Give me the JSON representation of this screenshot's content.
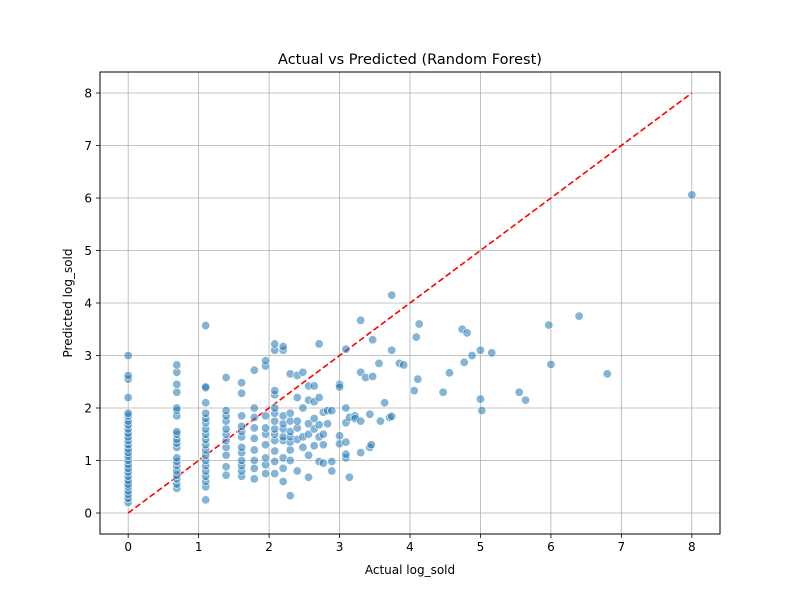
{
  "chart_data": {
    "type": "scatter",
    "title": "Actual vs Predicted (Random Forest)",
    "xlabel": "Actual log_sold",
    "ylabel": "Predicted log_sold",
    "xlim": [
      -0.4,
      8.4
    ],
    "ylim": [
      -0.4,
      8.4
    ],
    "xticks": [
      0,
      1,
      2,
      3,
      4,
      5,
      6,
      7,
      8
    ],
    "yticks": [
      0,
      1,
      2,
      3,
      4,
      5,
      6,
      7,
      8
    ],
    "grid": true,
    "point_color": "#1f77b4",
    "reference_line": {
      "from": [
        0,
        0
      ],
      "to": [
        8,
        8
      ],
      "color": "#ff0000",
      "style": "dashed"
    },
    "points": [
      [
        0,
        0.2
      ],
      [
        0,
        0.28
      ],
      [
        0,
        0.35
      ],
      [
        0,
        0.42
      ],
      [
        0,
        0.5
      ],
      [
        0,
        0.55
      ],
      [
        0,
        0.62
      ],
      [
        0,
        0.7
      ],
      [
        0,
        0.78
      ],
      [
        0,
        0.85
      ],
      [
        0,
        0.92
      ],
      [
        0,
        1.0
      ],
      [
        0,
        1.08
      ],
      [
        0,
        1.15
      ],
      [
        0,
        1.22
      ],
      [
        0,
        1.3
      ],
      [
        0,
        1.38
      ],
      [
        0,
        1.45
      ],
      [
        0,
        1.52
      ],
      [
        0,
        1.6
      ],
      [
        0,
        1.68
      ],
      [
        0,
        1.75
      ],
      [
        0,
        1.85
      ],
      [
        0,
        1.9
      ],
      [
        0,
        2.2
      ],
      [
        0,
        2.55
      ],
      [
        0,
        2.62
      ],
      [
        0,
        3.0
      ],
      [
        0.69,
        0.47
      ],
      [
        0.69,
        0.55
      ],
      [
        0.69,
        0.65
      ],
      [
        0.69,
        0.72
      ],
      [
        0.69,
        0.8
      ],
      [
        0.69,
        0.9
      ],
      [
        0.69,
        0.98
      ],
      [
        0.69,
        1.05
      ],
      [
        0.69,
        1.25
      ],
      [
        0.69,
        1.33
      ],
      [
        0.69,
        1.4
      ],
      [
        0.69,
        1.5
      ],
      [
        0.69,
        1.55
      ],
      [
        0.69,
        1.85
      ],
      [
        0.69,
        1.95
      ],
      [
        0.69,
        2.0
      ],
      [
        0.69,
        2.3
      ],
      [
        0.69,
        2.45
      ],
      [
        0.69,
        2.68
      ],
      [
        0.69,
        2.82
      ],
      [
        1.1,
        0.25
      ],
      [
        1.1,
        0.5
      ],
      [
        1.1,
        0.6
      ],
      [
        1.1,
        0.7
      ],
      [
        1.1,
        0.8
      ],
      [
        1.1,
        0.9
      ],
      [
        1.1,
        1.0
      ],
      [
        1.1,
        1.1
      ],
      [
        1.1,
        1.2
      ],
      [
        1.1,
        1.3
      ],
      [
        1.1,
        1.4
      ],
      [
        1.1,
        1.5
      ],
      [
        1.1,
        1.6
      ],
      [
        1.1,
        1.72
      ],
      [
        1.1,
        1.8
      ],
      [
        1.1,
        1.9
      ],
      [
        1.1,
        2.1
      ],
      [
        1.1,
        2.38
      ],
      [
        1.1,
        2.4
      ],
      [
        1.1,
        3.57
      ],
      [
        1.39,
        0.72
      ],
      [
        1.39,
        0.88
      ],
      [
        1.39,
        1.1
      ],
      [
        1.39,
        1.25
      ],
      [
        1.39,
        1.38
      ],
      [
        1.39,
        1.5
      ],
      [
        1.39,
        1.6
      ],
      [
        1.39,
        1.75
      ],
      [
        1.39,
        1.85
      ],
      [
        1.39,
        1.95
      ],
      [
        1.39,
        2.58
      ],
      [
        1.61,
        0.7
      ],
      [
        1.61,
        0.8
      ],
      [
        1.61,
        0.9
      ],
      [
        1.61,
        1.0
      ],
      [
        1.61,
        1.15
      ],
      [
        1.61,
        1.25
      ],
      [
        1.61,
        1.45
      ],
      [
        1.61,
        1.55
      ],
      [
        1.61,
        1.65
      ],
      [
        1.61,
        1.85
      ],
      [
        1.61,
        2.28
      ],
      [
        1.61,
        2.48
      ],
      [
        1.79,
        0.65
      ],
      [
        1.79,
        0.85
      ],
      [
        1.79,
        1.0
      ],
      [
        1.79,
        1.2
      ],
      [
        1.79,
        1.42
      ],
      [
        1.79,
        1.62
      ],
      [
        1.79,
        1.82
      ],
      [
        1.79,
        2.0
      ],
      [
        1.79,
        2.72
      ],
      [
        1.95,
        0.75
      ],
      [
        1.95,
        0.92
      ],
      [
        1.95,
        1.05
      ],
      [
        1.95,
        1.3
      ],
      [
        1.95,
        1.5
      ],
      [
        1.95,
        1.62
      ],
      [
        1.95,
        1.85
      ],
      [
        1.95,
        2.8
      ],
      [
        1.95,
        2.9
      ],
      [
        2.08,
        0.75
      ],
      [
        2.08,
        0.98
      ],
      [
        2.08,
        1.18
      ],
      [
        2.08,
        1.38
      ],
      [
        2.08,
        1.5
      ],
      [
        2.08,
        1.6
      ],
      [
        2.08,
        1.75
      ],
      [
        2.08,
        1.9
      ],
      [
        2.08,
        2.0
      ],
      [
        2.08,
        2.25
      ],
      [
        2.08,
        2.33
      ],
      [
        2.08,
        3.1
      ],
      [
        2.08,
        3.22
      ],
      [
        2.2,
        0.6
      ],
      [
        2.2,
        0.85
      ],
      [
        2.2,
        1.05
      ],
      [
        2.2,
        1.38
      ],
      [
        2.2,
        1.45
      ],
      [
        2.2,
        1.6
      ],
      [
        2.2,
        1.7
      ],
      [
        2.2,
        1.85
      ],
      [
        2.2,
        3.1
      ],
      [
        2.2,
        3.17
      ],
      [
        2.3,
        0.33
      ],
      [
        2.3,
        1.0
      ],
      [
        2.3,
        1.2
      ],
      [
        2.3,
        1.35
      ],
      [
        2.3,
        1.45
      ],
      [
        2.3,
        1.55
      ],
      [
        2.3,
        1.75
      ],
      [
        2.3,
        1.9
      ],
      [
        2.3,
        2.65
      ],
      [
        2.4,
        0.8
      ],
      [
        2.4,
        1.4
      ],
      [
        2.4,
        1.62
      ],
      [
        2.4,
        1.75
      ],
      [
        2.4,
        2.2
      ],
      [
        2.4,
        2.62
      ],
      [
        2.48,
        1.25
      ],
      [
        2.48,
        1.45
      ],
      [
        2.48,
        2.0
      ],
      [
        2.48,
        2.68
      ],
      [
        2.56,
        0.68
      ],
      [
        2.56,
        1.1
      ],
      [
        2.56,
        1.5
      ],
      [
        2.56,
        1.7
      ],
      [
        2.56,
        2.15
      ],
      [
        2.56,
        2.42
      ],
      [
        2.64,
        1.28
      ],
      [
        2.64,
        1.6
      ],
      [
        2.64,
        1.8
      ],
      [
        2.64,
        2.12
      ],
      [
        2.64,
        2.42
      ],
      [
        2.71,
        0.98
      ],
      [
        2.71,
        1.45
      ],
      [
        2.71,
        1.68
      ],
      [
        2.71,
        2.2
      ],
      [
        2.71,
        3.22
      ],
      [
        2.77,
        0.95
      ],
      [
        2.77,
        1.3
      ],
      [
        2.77,
        1.5
      ],
      [
        2.77,
        1.92
      ],
      [
        2.83,
        1.7
      ],
      [
        2.83,
        1.95
      ],
      [
        2.89,
        0.8
      ],
      [
        2.89,
        0.98
      ],
      [
        2.89,
        1.95
      ],
      [
        3.0,
        1.32
      ],
      [
        3.0,
        1.47
      ],
      [
        3.0,
        2.45
      ],
      [
        3.0,
        2.4
      ],
      [
        3.09,
        1.05
      ],
      [
        3.09,
        1.12
      ],
      [
        3.09,
        1.35
      ],
      [
        3.09,
        1.72
      ],
      [
        3.09,
        2.0
      ],
      [
        3.09,
        3.12
      ],
      [
        3.14,
        0.68
      ],
      [
        3.14,
        1.82
      ],
      [
        3.22,
        1.85
      ],
      [
        3.22,
        1.8
      ],
      [
        3.3,
        1.15
      ],
      [
        3.3,
        1.75
      ],
      [
        3.3,
        2.68
      ],
      [
        3.3,
        3.67
      ],
      [
        3.37,
        2.58
      ],
      [
        3.43,
        1.25
      ],
      [
        3.43,
        1.88
      ],
      [
        3.45,
        1.3
      ],
      [
        3.47,
        2.6
      ],
      [
        3.47,
        3.3
      ],
      [
        3.56,
        2.85
      ],
      [
        3.58,
        1.75
      ],
      [
        3.64,
        2.1
      ],
      [
        3.71,
        1.82
      ],
      [
        3.74,
        1.84
      ],
      [
        3.74,
        3.1
      ],
      [
        3.74,
        4.15
      ],
      [
        3.85,
        2.85
      ],
      [
        3.91,
        2.82
      ],
      [
        4.06,
        2.33
      ],
      [
        4.09,
        3.35
      ],
      [
        4.11,
        2.55
      ],
      [
        4.13,
        3.6
      ],
      [
        4.47,
        2.3
      ],
      [
        4.56,
        2.67
      ],
      [
        4.74,
        3.5
      ],
      [
        4.77,
        2.87
      ],
      [
        4.81,
        3.43
      ],
      [
        4.88,
        3.0
      ],
      [
        5.0,
        2.17
      ],
      [
        5.0,
        3.1
      ],
      [
        5.02,
        1.95
      ],
      [
        5.16,
        3.05
      ],
      [
        5.55,
        2.3
      ],
      [
        5.64,
        2.15
      ],
      [
        5.97,
        3.58
      ],
      [
        6.0,
        2.83
      ],
      [
        6.4,
        3.75
      ],
      [
        6.8,
        2.65
      ],
      [
        8.0,
        6.06
      ]
    ]
  }
}
